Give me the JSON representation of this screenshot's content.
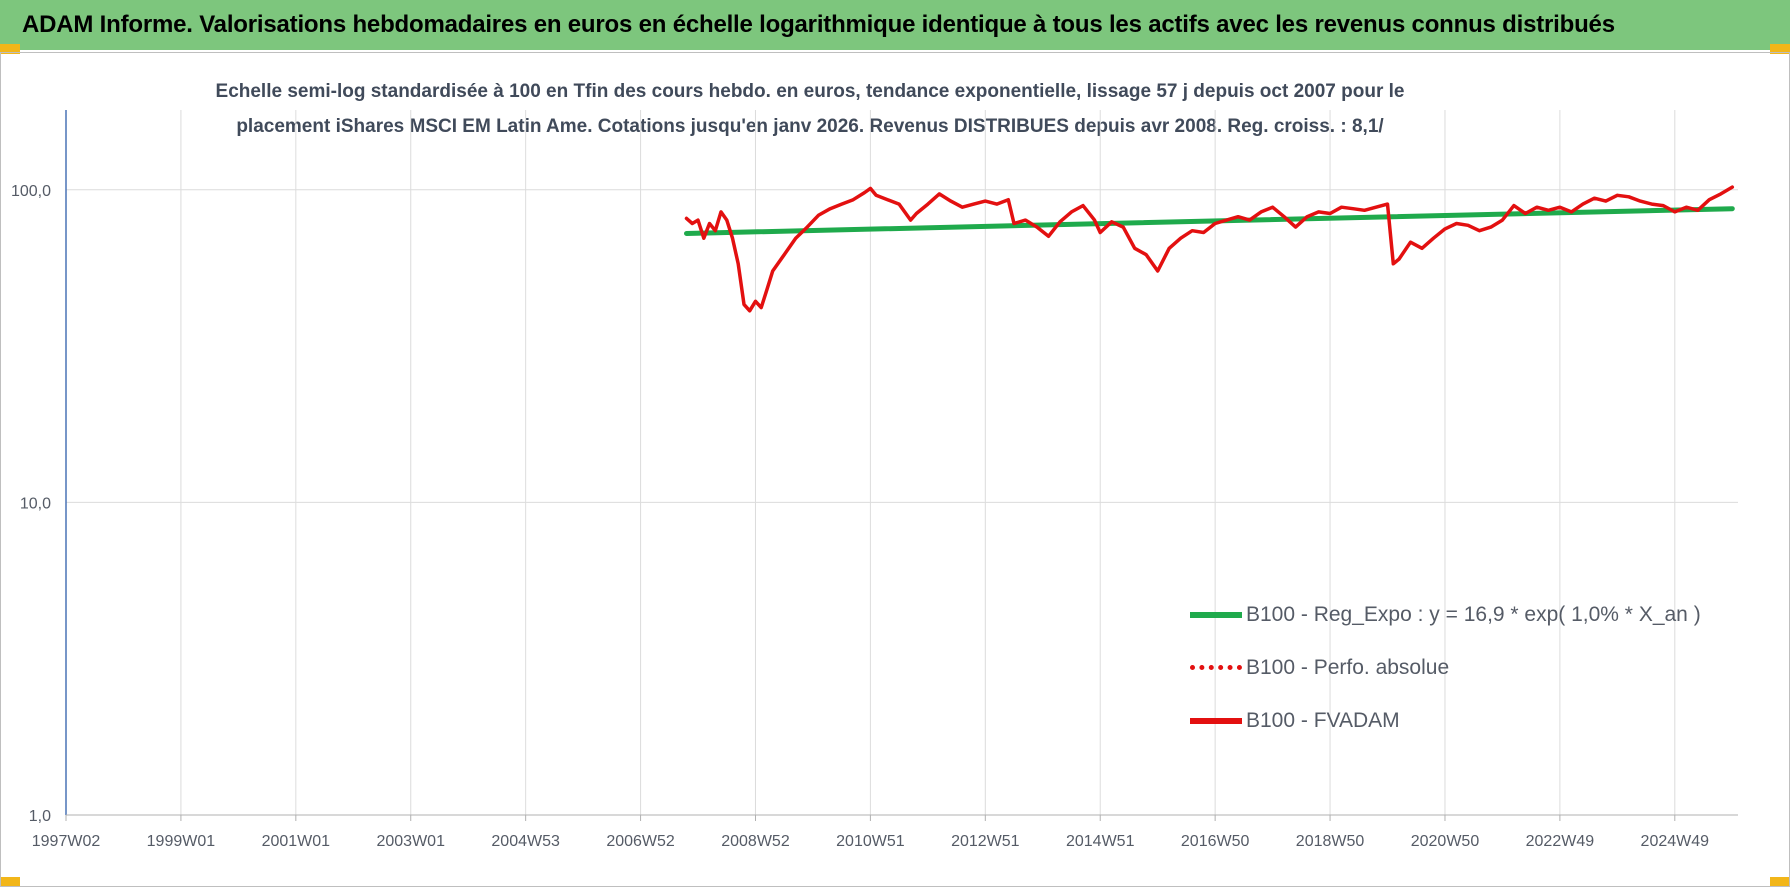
{
  "header": {
    "title": "ADAM Informe. Valorisations hebdomadaires en euros en échelle logarithmique identique à tous les actifs avec les revenus connus distribués"
  },
  "chart_data": {
    "type": "line",
    "title": "",
    "subtitle_lines": [
      "Echelle semi-log standardisée à 100 en Tfin des cours hebdo. en euros, tendance exponentielle, lissage 57 j depuis oct 2007 pour le",
      "placement iShares MSCI EM Latin Ame. Cotations jusqu'en janv 2026. Revenus DISTRIBUES depuis avr 2008. Reg. croiss. : 8,1/"
    ],
    "xlabel": "",
    "ylabel": "",
    "y_scale": "log",
    "ylim": [
      1,
      180
    ],
    "y_ticks": [
      {
        "value": 1,
        "label": "1,0"
      },
      {
        "value": 10,
        "label": "10,0"
      },
      {
        "value": 100,
        "label": "100,0"
      }
    ],
    "x_range": [
      1997.0,
      2026.1
    ],
    "x_ticks": [
      {
        "value": 1997.0,
        "label": "1997W02"
      },
      {
        "value": 1999.0,
        "label": "1999W01"
      },
      {
        "value": 2001.0,
        "label": "2001W01"
      },
      {
        "value": 2003.0,
        "label": "2003W01"
      },
      {
        "value": 2005.0,
        "label": "2004W53"
      },
      {
        "value": 2007.0,
        "label": "2006W52"
      },
      {
        "value": 2009.0,
        "label": "2008W52"
      },
      {
        "value": 2011.0,
        "label": "2010W51"
      },
      {
        "value": 2013.0,
        "label": "2012W51"
      },
      {
        "value": 2015.0,
        "label": "2014W51"
      },
      {
        "value": 2017.0,
        "label": "2016W50"
      },
      {
        "value": 2019.0,
        "label": "2018W50"
      },
      {
        "value": 2021.0,
        "label": "2020W50"
      },
      {
        "value": 2023.0,
        "label": "2022W49"
      },
      {
        "value": 2025.0,
        "label": "2024W49"
      }
    ],
    "grid": true,
    "legend_position": "bottom-right",
    "series": [
      {
        "name": "B100 - Reg_Expo : y = 16,9 * exp( 1,0% *  X_an )",
        "color": "#1faa4c",
        "style": "solid",
        "points": [
          [
            2007.8,
            72.5
          ],
          [
            2026.0,
            87.0
          ]
        ]
      },
      {
        "name": "B100 - Perfo. absolue",
        "color": "#e31010",
        "style": "dotted",
        "points": []
      },
      {
        "name": "B100 - FVADAM",
        "color": "#e31010",
        "style": "solid",
        "points": [
          [
            2007.8,
            81
          ],
          [
            2007.9,
            78
          ],
          [
            2008.0,
            80
          ],
          [
            2008.1,
            70
          ],
          [
            2008.2,
            78
          ],
          [
            2008.3,
            74
          ],
          [
            2008.4,
            85
          ],
          [
            2008.5,
            80
          ],
          [
            2008.6,
            70
          ],
          [
            2008.7,
            58
          ],
          [
            2008.8,
            43
          ],
          [
            2008.9,
            41
          ],
          [
            2009.0,
            44
          ],
          [
            2009.1,
            42
          ],
          [
            2009.2,
            48
          ],
          [
            2009.3,
            55
          ],
          [
            2009.5,
            62
          ],
          [
            2009.7,
            70
          ],
          [
            2009.9,
            76
          ],
          [
            2010.1,
            83
          ],
          [
            2010.3,
            87
          ],
          [
            2010.5,
            90
          ],
          [
            2010.7,
            93
          ],
          [
            2010.9,
            98
          ],
          [
            2011.0,
            101
          ],
          [
            2011.1,
            96
          ],
          [
            2011.3,
            93
          ],
          [
            2011.5,
            90
          ],
          [
            2011.7,
            80
          ],
          [
            2011.8,
            84
          ],
          [
            2012.0,
            90
          ],
          [
            2012.2,
            97
          ],
          [
            2012.4,
            92
          ],
          [
            2012.6,
            88
          ],
          [
            2012.8,
            90
          ],
          [
            2013.0,
            92
          ],
          [
            2013.2,
            90
          ],
          [
            2013.4,
            93
          ],
          [
            2013.5,
            78
          ],
          [
            2013.7,
            80
          ],
          [
            2013.9,
            76
          ],
          [
            2014.1,
            71
          ],
          [
            2014.3,
            79
          ],
          [
            2014.5,
            85
          ],
          [
            2014.7,
            89
          ],
          [
            2014.9,
            80
          ],
          [
            2015.0,
            73
          ],
          [
            2015.2,
            79
          ],
          [
            2015.4,
            76
          ],
          [
            2015.6,
            65
          ],
          [
            2015.8,
            62
          ],
          [
            2016.0,
            55
          ],
          [
            2016.2,
            65
          ],
          [
            2016.4,
            70
          ],
          [
            2016.6,
            74
          ],
          [
            2016.8,
            73
          ],
          [
            2017.0,
            78
          ],
          [
            2017.2,
            80
          ],
          [
            2017.4,
            82
          ],
          [
            2017.6,
            80
          ],
          [
            2017.8,
            85
          ],
          [
            2018.0,
            88
          ],
          [
            2018.2,
            82
          ],
          [
            2018.4,
            76
          ],
          [
            2018.6,
            82
          ],
          [
            2018.8,
            85
          ],
          [
            2019.0,
            84
          ],
          [
            2019.2,
            88
          ],
          [
            2019.4,
            87
          ],
          [
            2019.6,
            86
          ],
          [
            2019.8,
            88
          ],
          [
            2020.0,
            90
          ],
          [
            2020.1,
            58
          ],
          [
            2020.2,
            60
          ],
          [
            2020.4,
            68
          ],
          [
            2020.6,
            65
          ],
          [
            2020.8,
            70
          ],
          [
            2021.0,
            75
          ],
          [
            2021.2,
            78
          ],
          [
            2021.4,
            77
          ],
          [
            2021.6,
            74
          ],
          [
            2021.8,
            76
          ],
          [
            2022.0,
            80
          ],
          [
            2022.2,
            89
          ],
          [
            2022.4,
            84
          ],
          [
            2022.6,
            88
          ],
          [
            2022.8,
            86
          ],
          [
            2023.0,
            88
          ],
          [
            2023.2,
            85
          ],
          [
            2023.4,
            90
          ],
          [
            2023.6,
            94
          ],
          [
            2023.8,
            92
          ],
          [
            2024.0,
            96
          ],
          [
            2024.2,
            95
          ],
          [
            2024.4,
            92
          ],
          [
            2024.6,
            90
          ],
          [
            2024.8,
            89
          ],
          [
            2025.0,
            85
          ],
          [
            2025.2,
            88
          ],
          [
            2025.4,
            86
          ],
          [
            2025.6,
            93
          ],
          [
            2025.8,
            97
          ],
          [
            2026.0,
            102
          ]
        ]
      }
    ]
  }
}
